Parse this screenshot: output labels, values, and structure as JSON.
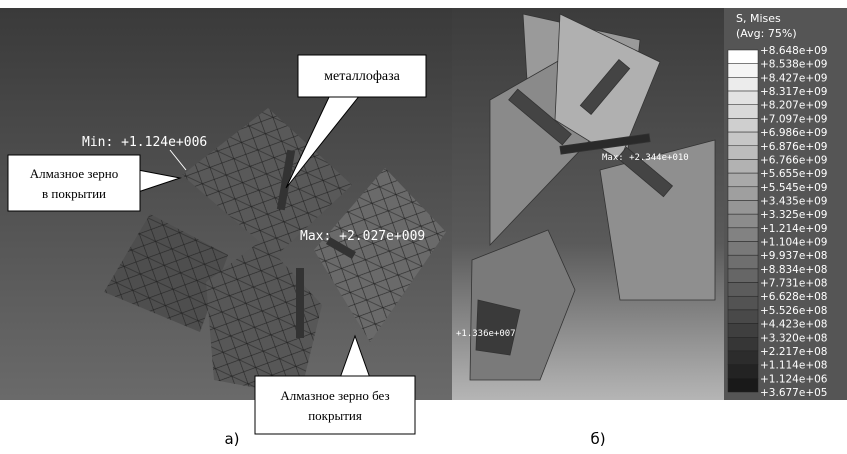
{
  "panel_a": {
    "labels": {
      "metal_phase": "металлофаза",
      "min": "Min: +1.124e+006",
      "max": "Max: +2.027e+009"
    },
    "callouts": {
      "coated": [
        "Алмазное зерно",
        "в покрытии"
      ],
      "uncoated": [
        "Алмазное зерно без",
        "покрытия"
      ]
    },
    "caption": "а)"
  },
  "panel_b": {
    "labels": {
      "max": "Max: +2.344e+010",
      "min": "+1.336e+007"
    },
    "caption": "б)"
  },
  "legend": {
    "title": "S, Mises",
    "subtitle": "(Avg: 75%)",
    "values": [
      "+8.648e+09",
      "+8.538e+09",
      "+8.427e+09",
      "+8.317e+09",
      "+8.207e+09",
      "+7.097e+09",
      "+6.986e+09",
      "+6.876e+09",
      "+6.766e+09",
      "+5.655e+09",
      "+5.545e+09",
      "+3.435e+09",
      "+3.325e+09",
      "+1.214e+09",
      "+1.104e+09",
      "+9.937e+08",
      "+8.834e+08",
      "+7.731e+08",
      "+6.628e+08",
      "+5.526e+08",
      "+4.423e+08",
      "+3.320e+08",
      "+2.217e+08",
      "+1.114e+08",
      "+1.124e+06",
      "+3.677e+05"
    ]
  }
}
